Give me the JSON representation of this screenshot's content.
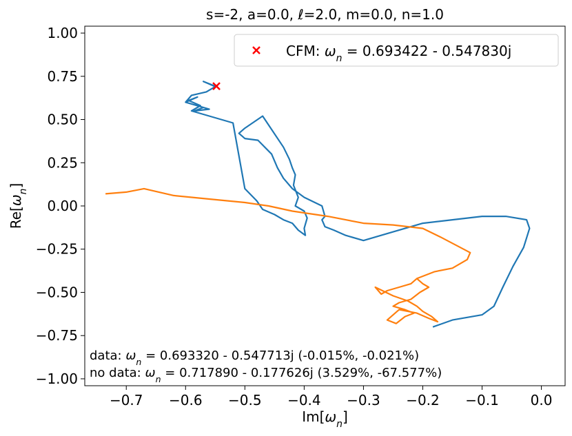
{
  "chart_data": {
    "type": "line",
    "title": "s=-2, a=0.0, ℓ=2.0, m=0.0, n=1.0",
    "xlabel": "Im[ωn]",
    "ylabel": "Re[ωn]",
    "xlim": [
      -0.77,
      0.04
    ],
    "ylim": [
      -1.04,
      1.04
    ],
    "xticks": [
      -0.7,
      -0.6,
      -0.5,
      -0.4,
      -0.3,
      -0.2,
      -0.1,
      0.0
    ],
    "xtick_labels": [
      "−0.7",
      "−0.6",
      "−0.5",
      "−0.4",
      "−0.3",
      "−0.2",
      "−0.1",
      "0.0"
    ],
    "yticks": [
      -1.0,
      -0.75,
      -0.5,
      -0.25,
      0.0,
      0.25,
      0.5,
      0.75,
      1.0
    ],
    "ytick_labels": [
      "−1.00",
      "−0.75",
      "−0.50",
      "−0.25",
      "0.00",
      "0.25",
      "0.50",
      "0.75",
      "1.00"
    ],
    "grid": false,
    "legend_position": "top-right",
    "series": [
      {
        "color": "#1f77b4",
        "x": [
          -0.183,
          -0.15,
          -0.1,
          -0.08,
          -0.065,
          -0.048,
          -0.03,
          -0.02,
          -0.025,
          -0.06,
          -0.1,
          -0.15,
          -0.2,
          -0.25,
          -0.3,
          -0.33,
          -0.35,
          -0.365,
          -0.37,
          -0.365,
          -0.37,
          -0.4,
          -0.42,
          -0.435,
          -0.445,
          -0.455,
          -0.478,
          -0.5,
          -0.51,
          -0.5,
          -0.47,
          -0.435,
          -0.425,
          -0.42,
          -0.415,
          -0.418,
          -0.41,
          -0.415,
          -0.4,
          -0.395,
          -0.4,
          -0.398,
          -0.41,
          -0.42,
          -0.435,
          -0.45,
          -0.47,
          -0.48,
          -0.5,
          -0.52,
          -0.54,
          -0.56,
          -0.59,
          -0.575,
          -0.595,
          -0.58,
          -0.6,
          -0.56,
          -0.585,
          -0.57,
          -0.6,
          -0.59,
          -0.565,
          -0.55,
          -0.57,
          -0.55
        ],
        "y": [
          -0.7,
          -0.66,
          -0.63,
          -0.58,
          -0.47,
          -0.35,
          -0.24,
          -0.13,
          -0.08,
          -0.06,
          -0.06,
          -0.08,
          -0.1,
          -0.15,
          -0.2,
          -0.17,
          -0.14,
          -0.12,
          -0.08,
          -0.06,
          0.0,
          0.05,
          0.1,
          0.16,
          0.22,
          0.3,
          0.38,
          0.39,
          0.42,
          0.45,
          0.52,
          0.34,
          0.27,
          0.22,
          0.18,
          0.12,
          0.05,
          0.0,
          -0.03,
          -0.07,
          -0.13,
          -0.17,
          -0.14,
          -0.1,
          -0.08,
          -0.05,
          -0.02,
          0.03,
          0.1,
          0.48,
          0.5,
          0.52,
          0.55,
          0.58,
          0.61,
          0.63,
          0.6,
          0.56,
          0.55,
          0.57,
          0.6,
          0.64,
          0.66,
          0.69,
          0.72,
          0.693
        ]
      },
      {
        "color": "#ff7f0e",
        "x": [
          -0.735,
          -0.7,
          -0.67,
          -0.62,
          -0.56,
          -0.5,
          -0.46,
          -0.42,
          -0.36,
          -0.3,
          -0.25,
          -0.2,
          -0.17,
          -0.12,
          -0.125,
          -0.15,
          -0.18,
          -0.21,
          -0.22,
          -0.24,
          -0.26,
          -0.27,
          -0.28,
          -0.25,
          -0.225,
          -0.21,
          -0.2,
          -0.185,
          -0.175,
          -0.19,
          -0.21,
          -0.24,
          -0.25,
          -0.26,
          -0.245,
          -0.23,
          -0.215,
          -0.23,
          -0.25,
          -0.24,
          -0.22,
          -0.205,
          -0.19,
          -0.2,
          -0.21
        ],
        "y": [
          0.07,
          0.08,
          0.1,
          0.06,
          0.04,
          0.02,
          0.0,
          -0.03,
          -0.06,
          -0.1,
          -0.11,
          -0.13,
          -0.18,
          -0.27,
          -0.31,
          -0.36,
          -0.38,
          -0.42,
          -0.45,
          -0.47,
          -0.49,
          -0.51,
          -0.47,
          -0.52,
          -0.55,
          -0.58,
          -0.61,
          -0.64,
          -0.67,
          -0.65,
          -0.62,
          -0.6,
          -0.63,
          -0.66,
          -0.68,
          -0.64,
          -0.62,
          -0.6,
          -0.58,
          -0.56,
          -0.54,
          -0.5,
          -0.47,
          -0.45,
          -0.42
        ]
      }
    ],
    "marker": {
      "x": -0.548,
      "y": 0.693,
      "color": "#ff0000"
    },
    "legend": [
      {
        "label": "CFM: ωn = 0.693422 - 0.547830j",
        "color": "#ff0000",
        "marker": "x"
      }
    ],
    "annotations": [
      "data: ωn = 0.693320 - 0.547713j (-0.015%, -0.021%)",
      " no data: ωn = 0.717890 - 0.177626j (3.529%, -67.577%)"
    ]
  }
}
